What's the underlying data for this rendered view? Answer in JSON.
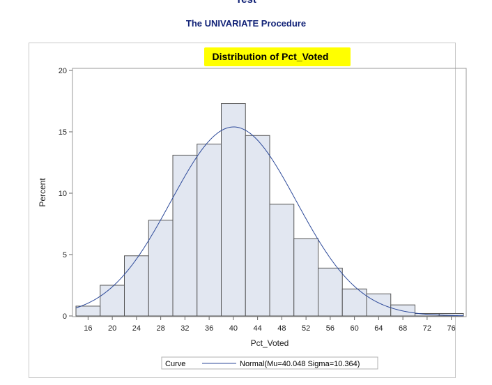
{
  "header": {
    "title": "Test",
    "procedure": "The UNIVARIATE Procedure"
  },
  "colors": {
    "bar_fill": "#e2e7f1",
    "bar_stroke": "#555555",
    "curve": "#2d4a9a",
    "highlight": "#ffff00",
    "title_text": "#112277"
  },
  "chart_data": {
    "type": "bar",
    "title": "Distribution of Pct_Voted",
    "xlabel": "Pct_Voted",
    "ylabel": "Percent",
    "xlim": [
      14,
      78
    ],
    "ylim": [
      0,
      20
    ],
    "xticks": [
      16,
      20,
      24,
      28,
      32,
      36,
      40,
      44,
      48,
      52,
      56,
      60,
      64,
      68,
      72,
      76
    ],
    "yticks": [
      0,
      5,
      10,
      15,
      20
    ],
    "bin_width": 4,
    "bin_midpoints": [
      16,
      20,
      24,
      28,
      32,
      36,
      40,
      44,
      48,
      52,
      56,
      60,
      64,
      68,
      72,
      76
    ],
    "values": [
      0.8,
      2.5,
      4.9,
      7.8,
      13.1,
      14.0,
      17.3,
      14.7,
      9.1,
      6.3,
      3.9,
      2.2,
      1.8,
      0.9,
      0.2,
      0.2
    ],
    "curve": {
      "name": "Normal(Mu=40.048 Sigma=10.364)",
      "mu": 40.048,
      "sigma": 10.364
    },
    "legend": {
      "title": "Curve",
      "entry": "Normal(Mu=40.048 Sigma=10.364)",
      "position": "bottom"
    },
    "grid": false
  }
}
